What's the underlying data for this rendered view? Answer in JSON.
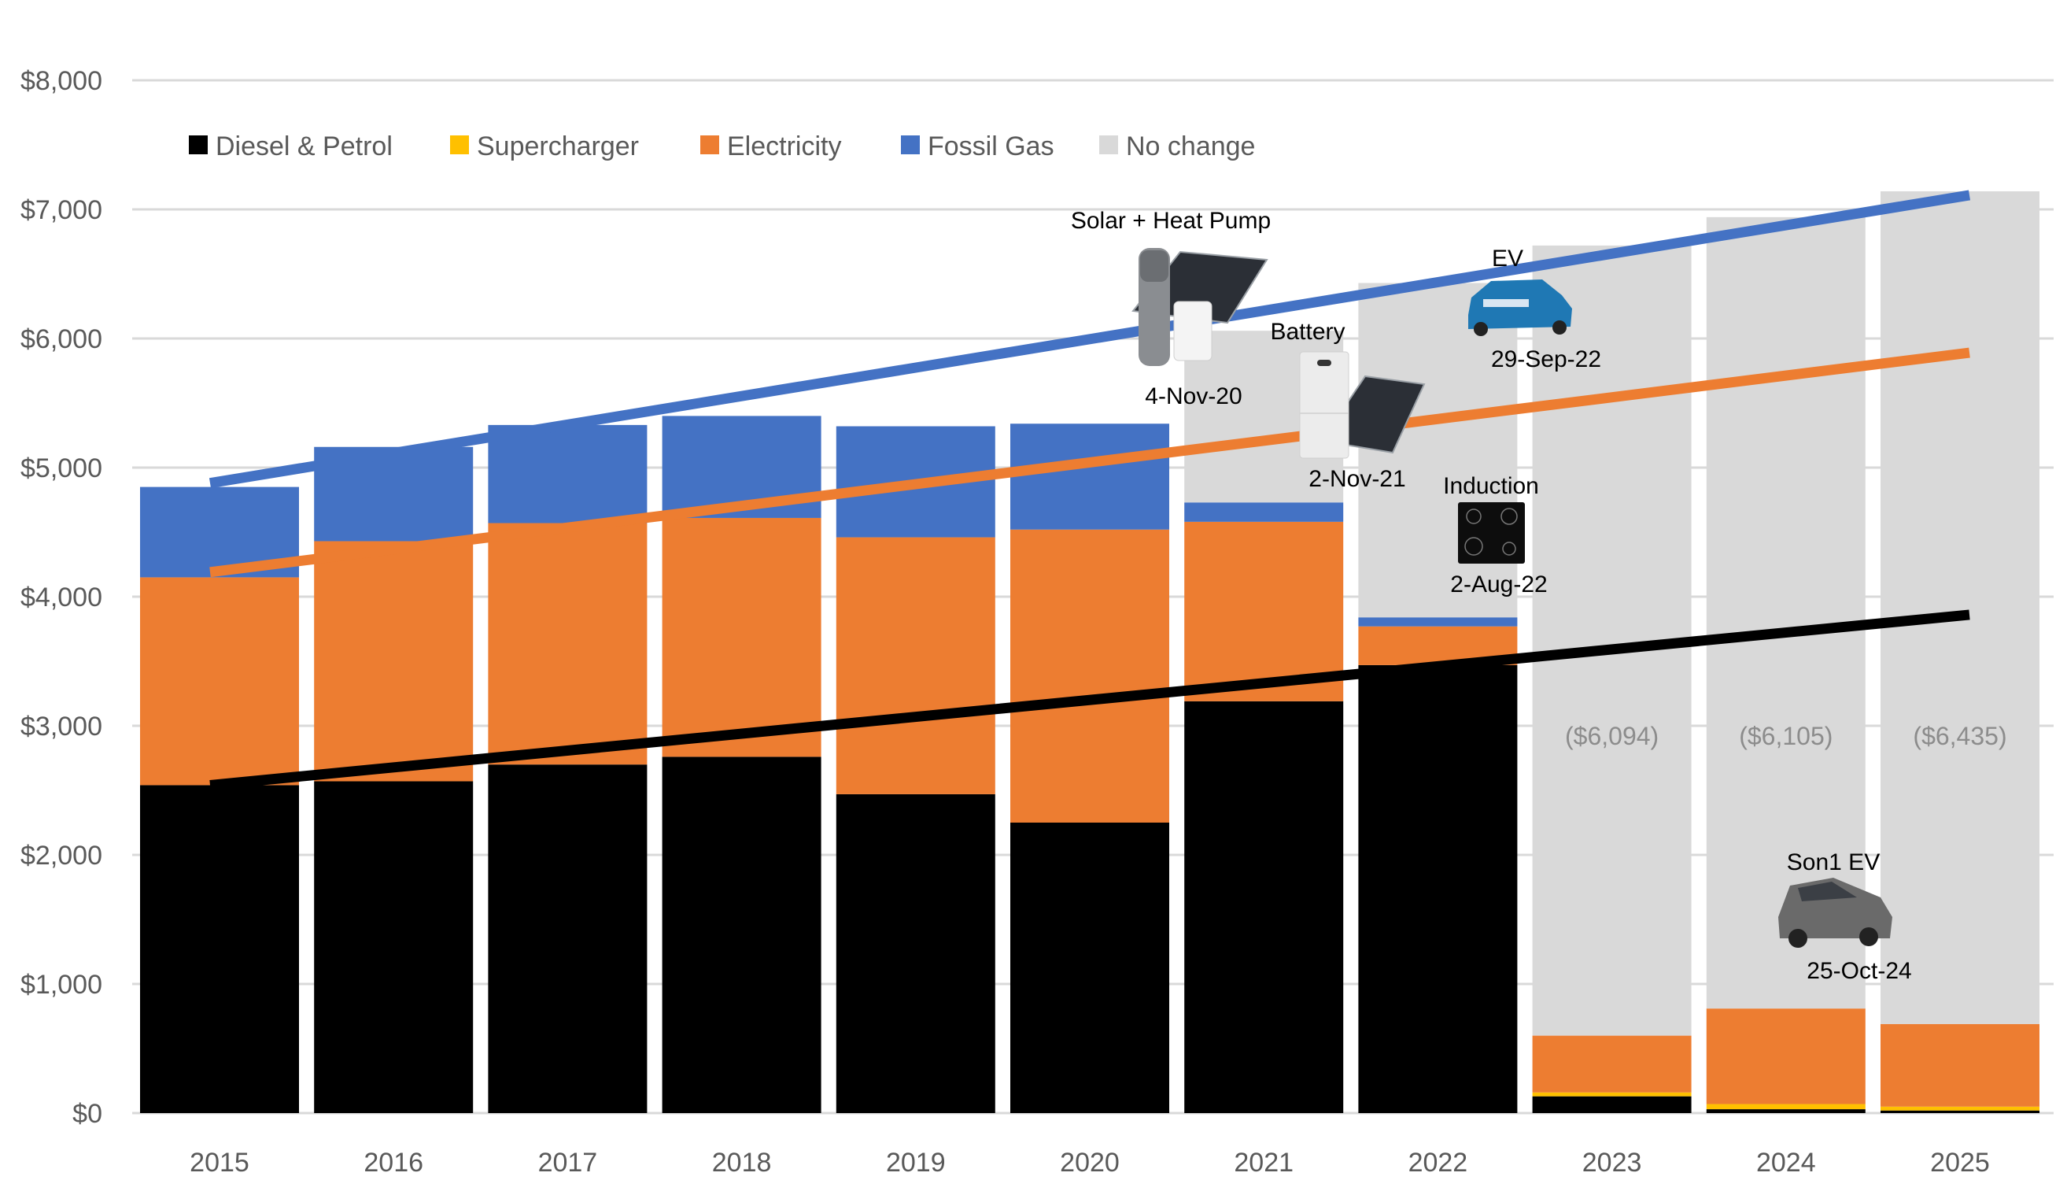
{
  "chart_data": {
    "type": "bar",
    "stacked": true,
    "title": "",
    "xlabel": "",
    "ylabel": "",
    "ylim": [
      0,
      8000
    ],
    "y_ticks": [
      "$0",
      "$1,000",
      "$2,000",
      "$3,000",
      "$4,000",
      "$5,000",
      "$6,000",
      "$7,000",
      "$8,000"
    ],
    "y_tick_values": [
      0,
      1000,
      2000,
      3000,
      4000,
      5000,
      6000,
      7000,
      8000
    ],
    "grid": true,
    "legend_position": "top-left",
    "categories": [
      "2015",
      "2016",
      "2017",
      "2018",
      "2019",
      "2020",
      "2021",
      "2022",
      "2023",
      "2024",
      "2025"
    ],
    "series": [
      {
        "name": "Diesel & Petrol",
        "color": "#000000",
        "values": [
          2540,
          2570,
          2700,
          2760,
          2470,
          2250,
          3190,
          3470,
          130,
          30,
          20
        ]
      },
      {
        "name": "Supercharger",
        "color": "#FFC000",
        "values": [
          0,
          0,
          0,
          0,
          0,
          0,
          0,
          0,
          30,
          40,
          30
        ]
      },
      {
        "name": "Electricity",
        "color": "#ED7D31",
        "values": [
          1610,
          1860,
          1870,
          1850,
          1990,
          2270,
          1390,
          300,
          440,
          740,
          640
        ]
      },
      {
        "name": "Fossil Gas",
        "color": "#4472C4",
        "values": [
          700,
          730,
          760,
          790,
          860,
          820,
          150,
          70,
          0,
          0,
          0
        ]
      },
      {
        "name": "No change",
        "color": "#D9D9D9",
        "values": [
          0,
          0,
          0,
          0,
          0,
          0,
          1330,
          2590,
          6120,
          6130,
          6450
        ]
      }
    ],
    "trendlines": [
      {
        "name": "Fossil Gas trend",
        "color": "#4472C4",
        "from": {
          "x": "2015",
          "y": 4880
        },
        "to": {
          "x": "2025",
          "y": 7110
        }
      },
      {
        "name": "Electricity trend",
        "color": "#ED7D31",
        "from": {
          "x": "2015",
          "y": 4190
        },
        "to": {
          "x": "2025",
          "y": 5890
        }
      },
      {
        "name": "Diesel & Petrol trend",
        "color": "#000000",
        "from": {
          "x": "2015",
          "y": 2540
        },
        "to": {
          "x": "2025",
          "y": 3860
        }
      }
    ],
    "data_labels": [
      {
        "category": "2023",
        "text": "($6,094)"
      },
      {
        "category": "2024",
        "text": "($6,105)"
      },
      {
        "category": "2025",
        "text": "($6,435)"
      }
    ],
    "annotations": [
      {
        "title": "Solar + Heat Pump",
        "date": "4-Nov-20",
        "icon": "solar-heat-pump-icon"
      },
      {
        "title": "Battery",
        "date": "2-Nov-21",
        "icon": "battery-icon"
      },
      {
        "title": "Induction",
        "date": "2-Aug-22",
        "icon": "induction-cooktop-icon"
      },
      {
        "title": "EV",
        "date": "29-Sep-22",
        "icon": "blue-suv-ev-icon"
      },
      {
        "title": "Son1 EV",
        "date": "25-Oct-24",
        "icon": "grey-hatchback-ev-icon"
      }
    ]
  }
}
